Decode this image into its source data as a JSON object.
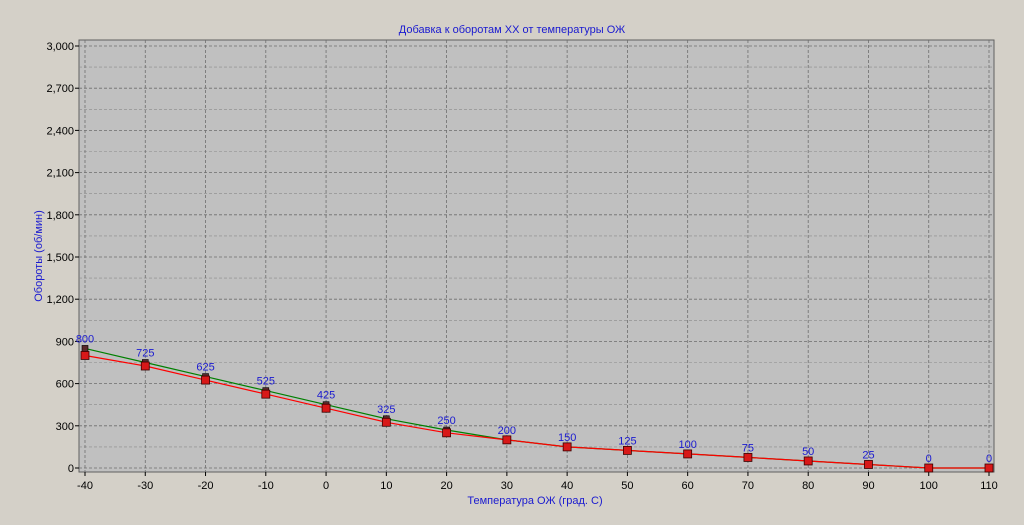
{
  "chart_data": {
    "type": "line",
    "title": "Добавка к оборотам ХХ от температуры ОЖ",
    "xlabel": "Температура ОЖ (град. С)",
    "ylabel": "Обороты (об/мин)",
    "x": [
      -40,
      -30,
      -20,
      -10,
      0,
      10,
      20,
      30,
      40,
      50,
      60,
      70,
      80,
      90,
      100,
      110
    ],
    "xticks": [
      "-40",
      "-30",
      "-20",
      "-10",
      "0",
      "10",
      "20",
      "30",
      "40",
      "50",
      "60",
      "70",
      "80",
      "90",
      "100",
      "110"
    ],
    "yticks": [
      "0",
      "300",
      "600",
      "900",
      "1,200",
      "1,500",
      "1,800",
      "2,100",
      "2,400",
      "2,700",
      "3,000"
    ],
    "xlim": [
      -40,
      110
    ],
    "ylim": [
      0,
      3000
    ],
    "grid": true,
    "series": [
      {
        "color": "#008000",
        "values": [
          850,
          750,
          650,
          550,
          450,
          350,
          270,
          200,
          150,
          125,
          100,
          75,
          50,
          25,
          0,
          0
        ],
        "data_labels": []
      },
      {
        "color": "#ff0000",
        "values": [
          800,
          725,
          625,
          525,
          425,
          325,
          250,
          200,
          150,
          125,
          100,
          75,
          50,
          25,
          0,
          0
        ],
        "data_labels": [
          "800",
          "725",
          "625",
          "525",
          "425",
          "325",
          "250",
          "200",
          "150",
          "125",
          "100",
          "75",
          "50",
          "25",
          "0",
          "0"
        ]
      }
    ],
    "colors": {
      "plot_bg": "#c0c0c0",
      "page_bg": "#d4d0c8",
      "label": "#1a1ad0",
      "grid": "#808080"
    }
  }
}
